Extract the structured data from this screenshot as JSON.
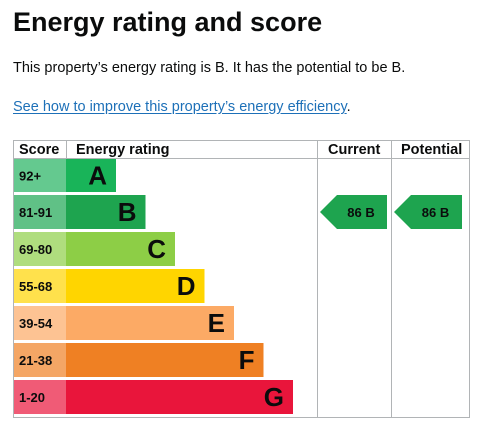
{
  "page": {
    "title": "Energy rating and score",
    "summary": "This property’s energy rating is B. It has the potential to be B.",
    "improve_link": "See how to improve this property’s energy efficiency",
    "improve_suffix": "."
  },
  "chart_data": {
    "type": "table",
    "headers": {
      "score": "Score",
      "rating": "Energy rating",
      "current": "Current",
      "potential": "Potential"
    },
    "bands": [
      {
        "score": "92+",
        "letter": "A",
        "color": "#19b459",
        "score_color": "#64c98f"
      },
      {
        "score": "81-91",
        "letter": "B",
        "color": "#1ea44f",
        "score_color": "#60c186"
      },
      {
        "score": "69-80",
        "letter": "C",
        "color": "#8dce46",
        "score_color": "#afdd7e"
      },
      {
        "score": "55-68",
        "letter": "D",
        "color": "#ffd500",
        "score_color": "#ffe14c"
      },
      {
        "score": "39-54",
        "letter": "E",
        "color": "#fcaa65",
        "score_color": "#fdc393"
      },
      {
        "score": "21-38",
        "letter": "F",
        "color": "#ef8023",
        "score_color": "#f4a665"
      },
      {
        "score": "1-20",
        "letter": "G",
        "color": "#e9153b",
        "score_color": "#f05b76"
      }
    ],
    "current": {
      "score": 86,
      "rating": "B",
      "label": "86 B",
      "color": "#1ea44f"
    },
    "potential": {
      "score": 86,
      "rating": "B",
      "label": "86 B",
      "color": "#1ea44f"
    },
    "grid_color": "#b1b4b6"
  }
}
